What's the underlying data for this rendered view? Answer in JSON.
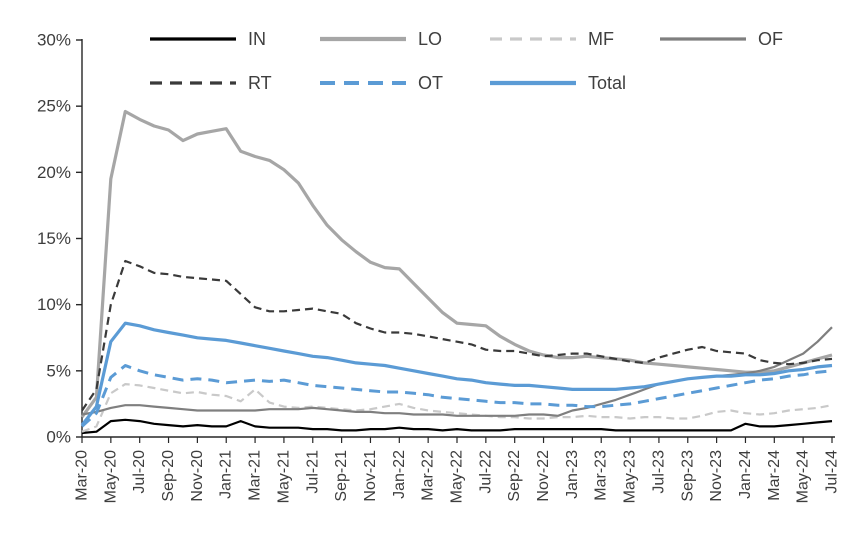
{
  "page": {
    "background": "#ffffff"
  },
  "chart_data": {
    "type": "line",
    "title": "",
    "xlabel": "",
    "ylabel": "",
    "ylim": [
      0,
      30
    ],
    "ytick_labels": [
      "0%",
      "5%",
      "10%",
      "15%",
      "20%",
      "25%",
      "30%"
    ],
    "grid": false,
    "legend_position": "top",
    "axis_color": "#262626",
    "text_color": "#3d3d3d",
    "accent_blue": "#5b9bd5",
    "x_label_every": 2,
    "x": [
      "Mar-20",
      "Apr-20",
      "May-20",
      "Jun-20",
      "Jul-20",
      "Aug-20",
      "Sep-20",
      "Oct-20",
      "Nov-20",
      "Dec-20",
      "Jan-21",
      "Feb-21",
      "Mar-21",
      "Apr-21",
      "May-21",
      "Jun-21",
      "Jul-21",
      "Aug-21",
      "Sep-21",
      "Oct-21",
      "Nov-21",
      "Dec-21",
      "Jan-22",
      "Feb-22",
      "Mar-22",
      "Apr-22",
      "May-22",
      "Jun-22",
      "Jul-22",
      "Aug-22",
      "Sep-22",
      "Oct-22",
      "Nov-22",
      "Dec-22",
      "Jan-23",
      "Feb-23",
      "Mar-23",
      "Apr-23",
      "May-23",
      "Jun-23",
      "Jul-23",
      "Aug-23",
      "Sep-23",
      "Oct-23",
      "Nov-23",
      "Dec-23",
      "Jan-24",
      "Feb-24",
      "Mar-24",
      "Apr-24",
      "May-24",
      "Jun-24",
      "Jul-24"
    ],
    "legend_rows": [
      [
        "IN",
        "LO",
        "MF",
        "OF"
      ],
      [
        "RT",
        "OT",
        "Total"
      ]
    ],
    "series": [
      {
        "name": "IN",
        "color": "#000000",
        "dashed": false,
        "width": 2.2,
        "values": [
          0.3,
          0.4,
          1.2,
          1.3,
          1.2,
          1.0,
          0.9,
          0.8,
          0.9,
          0.8,
          0.8,
          1.2,
          0.8,
          0.7,
          0.7,
          0.7,
          0.6,
          0.6,
          0.5,
          0.5,
          0.6,
          0.6,
          0.7,
          0.6,
          0.6,
          0.5,
          0.6,
          0.5,
          0.5,
          0.5,
          0.6,
          0.6,
          0.6,
          0.6,
          0.6,
          0.6,
          0.6,
          0.5,
          0.5,
          0.5,
          0.5,
          0.5,
          0.5,
          0.5,
          0.5,
          0.5,
          1.0,
          0.8,
          0.8,
          0.9,
          1.0,
          1.1,
          1.2
        ]
      },
      {
        "name": "LO",
        "color": "#a6a6a6",
        "dashed": false,
        "width": 3.2,
        "values": [
          1.5,
          3.0,
          19.5,
          24.6,
          24.0,
          23.5,
          23.2,
          22.4,
          22.9,
          23.1,
          23.3,
          21.6,
          21.2,
          20.9,
          20.2,
          19.2,
          17.5,
          16.0,
          14.9,
          14.0,
          13.2,
          12.8,
          12.7,
          11.6,
          10.5,
          9.4,
          8.6,
          8.5,
          8.4,
          7.6,
          7.0,
          6.5,
          6.2,
          6.0,
          6.0,
          6.1,
          6.0,
          5.9,
          5.8,
          5.6,
          5.5,
          5.4,
          5.3,
          5.2,
          5.1,
          5.0,
          4.9,
          4.9,
          5.0,
          5.3,
          5.6,
          5.9,
          6.2
        ]
      },
      {
        "name": "MF",
        "color": "#c9c9c9",
        "dashed": true,
        "width": 2.2,
        "values": [
          0.4,
          0.8,
          3.3,
          4.0,
          3.9,
          3.7,
          3.5,
          3.3,
          3.4,
          3.2,
          3.1,
          2.7,
          3.6,
          2.6,
          2.3,
          2.2,
          2.3,
          2.2,
          2.1,
          2.0,
          2.1,
          2.3,
          2.5,
          2.2,
          2.0,
          1.9,
          1.8,
          1.7,
          1.6,
          1.5,
          1.5,
          1.4,
          1.4,
          1.5,
          1.5,
          1.6,
          1.5,
          1.5,
          1.4,
          1.5,
          1.5,
          1.4,
          1.4,
          1.6,
          1.9,
          2.0,
          1.8,
          1.7,
          1.8,
          2.0,
          2.1,
          2.2,
          2.4
        ]
      },
      {
        "name": "OF",
        "color": "#7f7f7f",
        "dashed": false,
        "width": 2.2,
        "values": [
          1.7,
          1.9,
          2.2,
          2.4,
          2.4,
          2.3,
          2.2,
          2.1,
          2.0,
          2.0,
          2.0,
          2.0,
          2.0,
          2.1,
          2.1,
          2.1,
          2.2,
          2.1,
          2.0,
          1.9,
          1.9,
          1.8,
          1.8,
          1.7,
          1.7,
          1.7,
          1.6,
          1.6,
          1.6,
          1.6,
          1.6,
          1.7,
          1.7,
          1.6,
          2.0,
          2.2,
          2.5,
          2.8,
          3.2,
          3.6,
          4.0,
          4.2,
          4.4,
          4.5,
          4.6,
          4.7,
          4.8,
          5.0,
          5.3,
          5.8,
          6.3,
          7.2,
          8.3
        ]
      },
      {
        "name": "RT",
        "color": "#3a3a3a",
        "dashed": true,
        "width": 2.2,
        "values": [
          2.0,
          3.6,
          10.0,
          13.3,
          12.9,
          12.4,
          12.3,
          12.1,
          12.0,
          11.9,
          11.8,
          10.8,
          9.8,
          9.5,
          9.5,
          9.6,
          9.7,
          9.5,
          9.3,
          8.6,
          8.2,
          7.9,
          7.9,
          7.8,
          7.6,
          7.4,
          7.2,
          7.0,
          6.6,
          6.5,
          6.5,
          6.3,
          6.1,
          6.2,
          6.3,
          6.3,
          6.1,
          5.9,
          5.7,
          5.6,
          6.0,
          6.3,
          6.6,
          6.8,
          6.5,
          6.4,
          6.3,
          5.8,
          5.6,
          5.5,
          5.6,
          5.8,
          5.9
        ]
      },
      {
        "name": "OT",
        "color": "#5b9bd5",
        "dashed": true,
        "width": 3.0,
        "values": [
          0.8,
          1.8,
          4.5,
          5.4,
          5.0,
          4.7,
          4.5,
          4.3,
          4.4,
          4.3,
          4.1,
          4.2,
          4.3,
          4.2,
          4.3,
          4.1,
          3.9,
          3.8,
          3.7,
          3.6,
          3.5,
          3.4,
          3.4,
          3.3,
          3.2,
          3.0,
          2.9,
          2.8,
          2.7,
          2.6,
          2.6,
          2.5,
          2.5,
          2.4,
          2.4,
          2.3,
          2.3,
          2.4,
          2.5,
          2.7,
          2.9,
          3.1,
          3.3,
          3.5,
          3.7,
          3.9,
          4.1,
          4.3,
          4.4,
          4.6,
          4.7,
          4.9,
          5.0
        ]
      },
      {
        "name": "Total",
        "color": "#5b9bd5",
        "dashed": false,
        "width": 3.2,
        "values": [
          0.9,
          2.3,
          7.2,
          8.6,
          8.4,
          8.1,
          7.9,
          7.7,
          7.5,
          7.4,
          7.3,
          7.1,
          6.9,
          6.7,
          6.5,
          6.3,
          6.1,
          6.0,
          5.8,
          5.6,
          5.5,
          5.4,
          5.2,
          5.0,
          4.8,
          4.6,
          4.4,
          4.3,
          4.1,
          4.0,
          3.9,
          3.9,
          3.8,
          3.7,
          3.6,
          3.6,
          3.6,
          3.6,
          3.7,
          3.8,
          4.0,
          4.2,
          4.4,
          4.5,
          4.6,
          4.6,
          4.7,
          4.7,
          4.8,
          5.0,
          5.1,
          5.3,
          5.4
        ]
      }
    ]
  }
}
